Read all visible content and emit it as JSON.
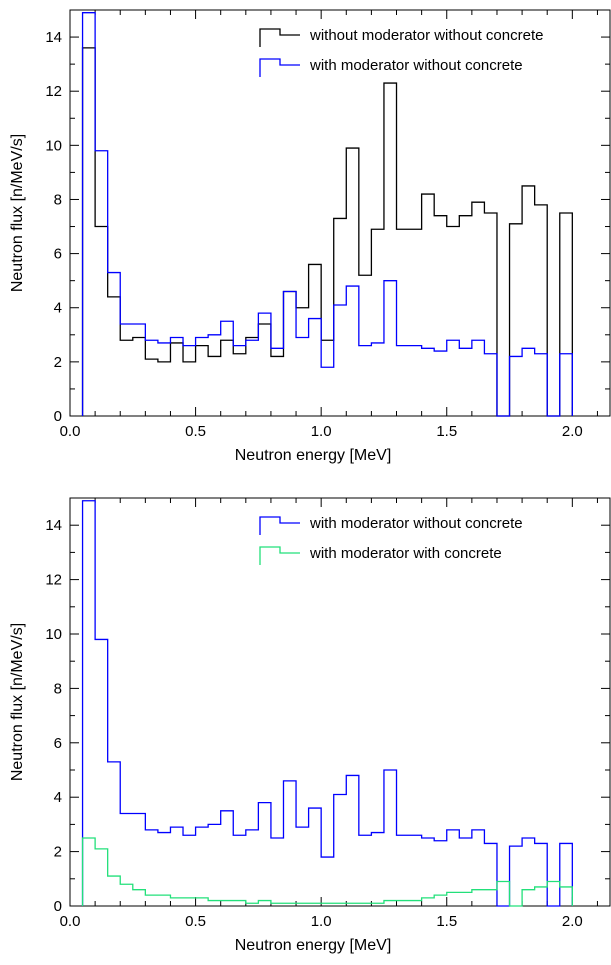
{
  "chart_data": [
    {
      "type": "line",
      "step": true,
      "xlabel": "Neutron energy [MeV]",
      "ylabel": "Neutron flux [n/MeV/s]",
      "xlim": [
        0.0,
        2.15
      ],
      "ylim": [
        0,
        15
      ],
      "xticks": [
        "0.0",
        "0.5",
        "1.0",
        "1.5",
        "2.0"
      ],
      "yticks": [
        "0",
        "2",
        "4",
        "6",
        "8",
        "10",
        "12",
        "14"
      ],
      "bin_edges": [
        0.05,
        0.1,
        0.15,
        0.2,
        0.25,
        0.3,
        0.35,
        0.4,
        0.45,
        0.5,
        0.55,
        0.6,
        0.65,
        0.7,
        0.75,
        0.8,
        0.85,
        0.9,
        0.95,
        1.0,
        1.05,
        1.1,
        1.15,
        1.2,
        1.25,
        1.3,
        1.35,
        1.4,
        1.45,
        1.5,
        1.55,
        1.6,
        1.65,
        1.7,
        1.75,
        1.8,
        1.85,
        1.9,
        1.95,
        2.0
      ],
      "legend_position": "top-right",
      "series": [
        {
          "name": "without moderator without concrete",
          "color": "#000000",
          "values": [
            13.6,
            7.0,
            4.4,
            2.8,
            2.9,
            2.1,
            2.0,
            2.7,
            2.0,
            2.6,
            2.2,
            2.8,
            2.3,
            2.9,
            3.4,
            2.2,
            4.6,
            4.0,
            5.6,
            2.8,
            7.3,
            9.9,
            5.2,
            6.9,
            12.3,
            6.9,
            6.9,
            8.2,
            7.4,
            7.0,
            7.4,
            7.9,
            7.5,
            0,
            7.1,
            8.5,
            7.8,
            0,
            7.5
          ]
        },
        {
          "name": "with moderator without concrete",
          "color": "#0000ff",
          "values": [
            14.9,
            9.8,
            5.3,
            3.4,
            3.4,
            2.8,
            2.7,
            2.9,
            2.6,
            2.9,
            3.0,
            3.5,
            2.6,
            2.8,
            3.8,
            2.5,
            4.6,
            2.9,
            3.6,
            1.8,
            4.1,
            4.8,
            2.6,
            2.7,
            5.0,
            2.6,
            2.6,
            2.5,
            2.4,
            2.8,
            2.5,
            2.8,
            2.3,
            0,
            2.2,
            2.5,
            2.3,
            0,
            2.3
          ]
        }
      ]
    },
    {
      "type": "line",
      "step": true,
      "xlabel": "Neutron energy [MeV]",
      "ylabel": "Neutron flux [n/MeV/s]",
      "xlim": [
        0.0,
        2.15
      ],
      "ylim": [
        0,
        15
      ],
      "xticks": [
        "0.0",
        "0.5",
        "1.0",
        "1.5",
        "2.0"
      ],
      "yticks": [
        "0",
        "2",
        "4",
        "6",
        "8",
        "10",
        "12",
        "14"
      ],
      "bin_edges": [
        0.05,
        0.1,
        0.15,
        0.2,
        0.25,
        0.3,
        0.35,
        0.4,
        0.45,
        0.5,
        0.55,
        0.6,
        0.65,
        0.7,
        0.75,
        0.8,
        0.85,
        0.9,
        0.95,
        1.0,
        1.05,
        1.1,
        1.15,
        1.2,
        1.25,
        1.3,
        1.35,
        1.4,
        1.45,
        1.5,
        1.55,
        1.6,
        1.65,
        1.7,
        1.75,
        1.8,
        1.85,
        1.9,
        1.95,
        2.0
      ],
      "legend_position": "top-right",
      "series": [
        {
          "name": "with moderator without concrete",
          "color": "#0000ff",
          "values": [
            14.9,
            9.8,
            5.3,
            3.4,
            3.4,
            2.8,
            2.7,
            2.9,
            2.6,
            2.9,
            3.0,
            3.5,
            2.6,
            2.8,
            3.8,
            2.5,
            4.6,
            2.9,
            3.6,
            1.8,
            4.1,
            4.8,
            2.6,
            2.7,
            5.0,
            2.6,
            2.6,
            2.5,
            2.4,
            2.8,
            2.5,
            2.8,
            2.3,
            0,
            2.2,
            2.5,
            2.3,
            0,
            2.3
          ]
        },
        {
          "name": "with moderator with concrete",
          "color": "#22e07a",
          "values": [
            2.5,
            2.1,
            1.1,
            0.8,
            0.6,
            0.4,
            0.4,
            0.3,
            0.3,
            0.3,
            0.2,
            0.2,
            0.2,
            0.1,
            0.2,
            0.1,
            0.1,
            0.1,
            0.1,
            0.1,
            0.1,
            0.1,
            0.1,
            0.1,
            0.2,
            0.2,
            0.2,
            0.3,
            0.4,
            0.5,
            0.5,
            0.6,
            0.6,
            0.9,
            0,
            0.6,
            0.7,
            0.9,
            0.7
          ]
        }
      ]
    }
  ]
}
